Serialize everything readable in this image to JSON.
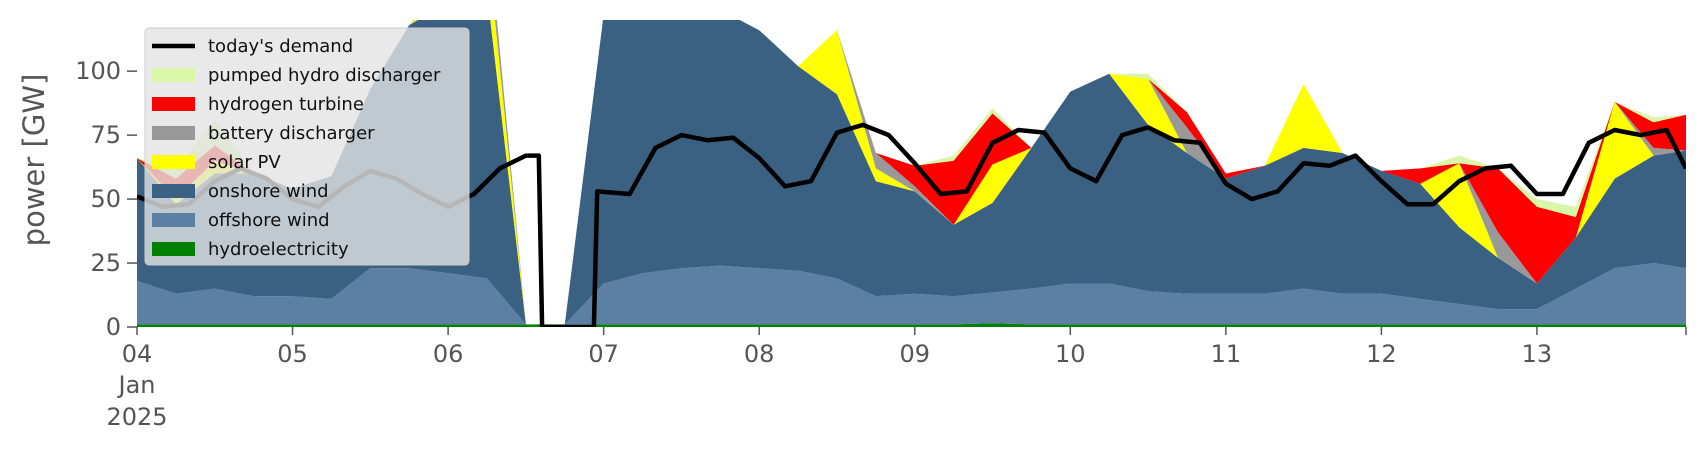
{
  "chart_data": {
    "type": "area",
    "ylabel": "power [GW]",
    "ylim": [
      0,
      120
    ],
    "yticks": [
      0,
      25,
      50,
      75,
      100
    ],
    "x_start": "2025-01-04T00:00",
    "x_end": "2025-01-13T23:00",
    "xticks": [
      {
        "date": "2025-01-04",
        "label": "04",
        "sub": [
          "Jan",
          "2025"
        ]
      },
      {
        "date": "2025-01-05",
        "label": "05"
      },
      {
        "date": "2025-01-06",
        "label": "06"
      },
      {
        "date": "2025-01-07",
        "label": "07"
      },
      {
        "date": "2025-01-08",
        "label": "08"
      },
      {
        "date": "2025-01-09",
        "label": "09"
      },
      {
        "date": "2025-01-10",
        "label": "10"
      },
      {
        "date": "2025-01-11",
        "label": "11"
      },
      {
        "date": "2025-01-12",
        "label": "12"
      },
      {
        "date": "2025-01-13",
        "label": "13"
      }
    ],
    "legend_position": "top-left",
    "legend_items": [
      {
        "label": "today's demand",
        "color": "#000000",
        "kind": "line"
      },
      {
        "label": "pumped hydro discharger",
        "color": "#d9f7a8",
        "kind": "patch"
      },
      {
        "label": "hydrogen turbine",
        "color": "#ff0000",
        "kind": "patch"
      },
      {
        "label": "battery discharger",
        "color": "#999999",
        "kind": "patch"
      },
      {
        "label": "solar PV",
        "color": "#ffff00",
        "kind": "patch"
      },
      {
        "label": "onshore wind",
        "color": "#3b6182",
        "kind": "patch"
      },
      {
        "label": "offshore wind",
        "color": "#5b80a4",
        "kind": "patch"
      },
      {
        "label": "hydroelectricity",
        "color": "#008000",
        "kind": "patch"
      }
    ],
    "x": [
      "2025-01-04T00:00",
      "2025-01-04T06:00",
      "2025-01-04T12:00",
      "2025-01-04T18:00",
      "2025-01-05T00:00",
      "2025-01-05T06:00",
      "2025-01-05T12:00",
      "2025-01-05T18:00",
      "2025-01-06T00:00",
      "2025-01-06T06:00",
      "2025-01-06T12:00",
      "2025-01-06T18:00",
      "2025-01-07T00:00",
      "2025-01-07T06:00",
      "2025-01-07T12:00",
      "2025-01-07T18:00",
      "2025-01-08T00:00",
      "2025-01-08T06:00",
      "2025-01-08T12:00",
      "2025-01-08T18:00",
      "2025-01-09T00:00",
      "2025-01-09T06:00",
      "2025-01-09T12:00",
      "2025-01-09T18:00",
      "2025-01-10T00:00",
      "2025-01-10T06:00",
      "2025-01-10T12:00",
      "2025-01-10T18:00",
      "2025-01-11T00:00",
      "2025-01-11T06:00",
      "2025-01-11T12:00",
      "2025-01-11T18:00",
      "2025-01-12T00:00",
      "2025-01-12T06:00",
      "2025-01-12T12:00",
      "2025-01-12T18:00",
      "2025-01-13T00:00",
      "2025-01-13T06:00",
      "2025-01-13T12:00",
      "2025-01-13T18:00",
      "2025-01-13T23:00"
    ],
    "series": [
      {
        "name": "hydroelectricity",
        "color": "#008000",
        "values": [
          1,
          1,
          1,
          1,
          1,
          1,
          1,
          1,
          1,
          1,
          1,
          1,
          1,
          1,
          1,
          1,
          1,
          1,
          1,
          1,
          1,
          1,
          1.5,
          1,
          1,
          1,
          1,
          1,
          1,
          1,
          1,
          1,
          1,
          1,
          1,
          1,
          1,
          1,
          1,
          1,
          1
        ]
      },
      {
        "name": "offshore wind",
        "color": "#5b80a4",
        "values": [
          17,
          12,
          14,
          11,
          11,
          10,
          22,
          22,
          20,
          18,
          0,
          0,
          16,
          20,
          22,
          23,
          22,
          21,
          18,
          11,
          12,
          11,
          12,
          14,
          16,
          16,
          13,
          12,
          12,
          12,
          14,
          12,
          12,
          10,
          8,
          6,
          6,
          14,
          22,
          24,
          22
        ]
      },
      {
        "name": "onshore wind",
        "color": "#3b6182",
        "values": [
          48,
          35,
          45,
          48,
          42,
          48,
          70,
          95,
          106,
          112,
          0,
          0,
          105,
          108,
          110,
          100,
          93,
          80,
          72,
          45,
          40,
          28,
          35,
          55,
          75,
          82,
          65,
          55,
          45,
          50,
          55,
          55,
          48,
          45,
          30,
          20,
          10,
          20,
          35,
          42,
          46
        ]
      },
      {
        "name": "solar PV",
        "color": "#ffff00",
        "values": [
          0,
          2,
          5,
          0,
          0,
          0,
          0,
          0,
          5,
          20,
          0,
          0,
          0,
          12,
          5,
          0,
          0,
          0,
          25,
          5,
          0,
          0,
          15,
          0,
          0,
          0,
          18,
          0,
          0,
          0,
          25,
          0,
          0,
          0,
          25,
          0,
          0,
          0,
          30,
          0,
          0
        ]
      },
      {
        "name": "battery discharger",
        "color": "#999999",
        "values": [
          0,
          0,
          0,
          0,
          0,
          0,
          0,
          0,
          3,
          10,
          0,
          0,
          0,
          0,
          0,
          0,
          0,
          0,
          0,
          6,
          2,
          0,
          0,
          0,
          0,
          0,
          0,
          10,
          0,
          0,
          0,
          0,
          0,
          0,
          0,
          10,
          0,
          0,
          0,
          3,
          0
        ]
      },
      {
        "name": "hydrogen turbine",
        "color": "#ff0000",
        "values": [
          0,
          8,
          6,
          0,
          0,
          0,
          0,
          0,
          0,
          0,
          0,
          0,
          0,
          0,
          0,
          0,
          0,
          0,
          0,
          0,
          8,
          25,
          20,
          0,
          0,
          0,
          0,
          6,
          2,
          0,
          0,
          0,
          0,
          6,
          0,
          25,
          30,
          8,
          0,
          10,
          14
        ]
      },
      {
        "name": "pumped hydro discharger",
        "color": "#d9f7a8",
        "values": [
          0,
          4,
          10,
          0,
          0,
          0,
          0,
          0,
          3,
          0,
          0,
          0,
          0,
          0,
          0,
          0,
          0,
          0,
          0,
          0,
          0,
          2,
          2,
          0,
          0,
          0,
          2,
          0,
          0,
          0,
          0,
          0,
          0,
          0,
          3,
          0,
          3,
          4,
          0,
          2,
          0
        ]
      }
    ],
    "demand": {
      "name": "today's demand",
      "color": "#000000",
      "x": [
        "2025-01-04T00:00",
        "2025-01-04T04:00",
        "2025-01-04T08:00",
        "2025-01-04T12:00",
        "2025-01-04T16:00",
        "2025-01-04T20:00",
        "2025-01-05T00:00",
        "2025-01-05T04:00",
        "2025-01-05T08:00",
        "2025-01-05T12:00",
        "2025-01-05T16:00",
        "2025-01-05T20:00",
        "2025-01-06T00:00",
        "2025-01-06T04:00",
        "2025-01-06T08:00",
        "2025-01-06T12:00",
        "2025-01-06T14:00",
        "2025-01-06T14:30",
        "2025-01-06T22:30",
        "2025-01-06T23:00",
        "2025-01-07T04:00",
        "2025-01-07T08:00",
        "2025-01-07T12:00",
        "2025-01-07T16:00",
        "2025-01-07T20:00",
        "2025-01-08T00:00",
        "2025-01-08T04:00",
        "2025-01-08T08:00",
        "2025-01-08T12:00",
        "2025-01-08T16:00",
        "2025-01-08T20:00",
        "2025-01-09T00:00",
        "2025-01-09T04:00",
        "2025-01-09T08:00",
        "2025-01-09T12:00",
        "2025-01-09T16:00",
        "2025-01-09T20:00",
        "2025-01-10T00:00",
        "2025-01-10T04:00",
        "2025-01-10T08:00",
        "2025-01-10T12:00",
        "2025-01-10T16:00",
        "2025-01-10T20:00",
        "2025-01-11T00:00",
        "2025-01-11T04:00",
        "2025-01-11T08:00",
        "2025-01-11T12:00",
        "2025-01-11T16:00",
        "2025-01-11T20:00",
        "2025-01-12T00:00",
        "2025-01-12T04:00",
        "2025-01-12T08:00",
        "2025-01-12T12:00",
        "2025-01-12T16:00",
        "2025-01-12T20:00",
        "2025-01-13T00:00",
        "2025-01-13T04:00",
        "2025-01-13T08:00",
        "2025-01-13T12:00",
        "2025-01-13T16:00",
        "2025-01-13T20:00",
        "2025-01-13T23:00"
      ],
      "values": [
        51,
        47,
        48,
        57,
        62,
        58,
        50,
        47,
        55,
        61,
        58,
        52,
        47,
        52,
        62,
        67,
        67,
        0,
        0,
        53,
        52,
        70,
        75,
        73,
        74,
        66,
        55,
        57,
        76,
        79,
        75,
        64,
        52,
        53,
        72,
        77,
        76,
        62,
        57,
        75,
        78,
        73,
        72,
        56,
        50,
        53,
        64,
        63,
        67,
        57,
        48,
        48,
        57,
        62,
        63,
        52,
        52,
        72,
        77,
        75,
        77,
        62
      ]
    }
  }
}
